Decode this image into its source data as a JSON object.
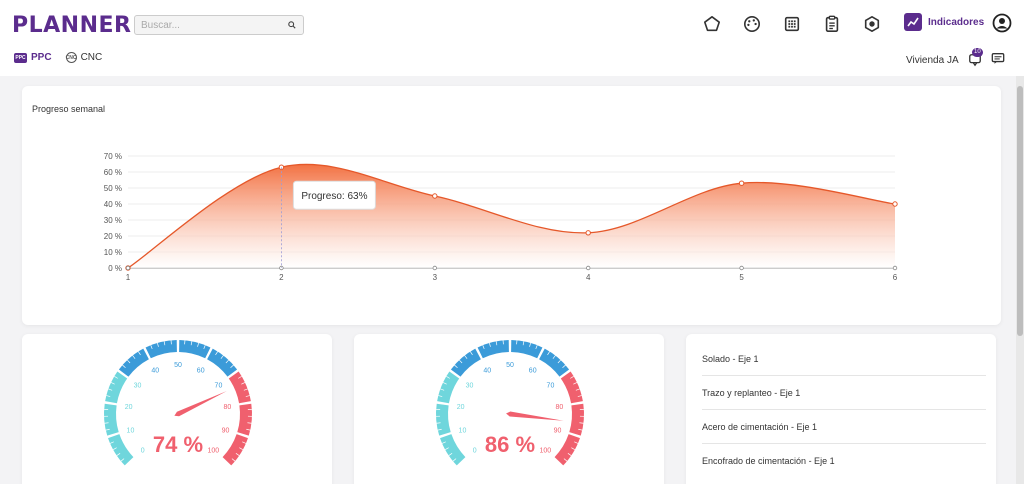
{
  "header": {
    "logo": "PLANNER",
    "search": {
      "placeholder": "Buscar...",
      "value": ""
    },
    "nav_icons": [
      "pentagon-icon",
      "palette-icon",
      "calendar-icon",
      "clipboard-icon",
      "hexagon-icon"
    ],
    "active_nav": {
      "label": "Indicadores",
      "icon": "trend-icon"
    }
  },
  "subnav": {
    "tabs": [
      {
        "label": "PPC",
        "icon_text": "PPC",
        "active": true
      },
      {
        "label": "CNC",
        "icon_text": "CNC",
        "active": false
      }
    ],
    "project": "Vivienda JA",
    "notification_count": "10"
  },
  "chart_data": {
    "type": "area",
    "title": "Progreso semanal",
    "x": [
      1,
      2,
      3,
      4,
      5,
      6
    ],
    "series": [
      {
        "values": [
          0,
          63,
          45,
          22,
          53,
          40
        ]
      }
    ],
    "xticks": [
      "1",
      "2",
      "3",
      "4",
      "5",
      "6"
    ],
    "yticks": [
      "0 %",
      "10 %",
      "20 %",
      "30 %",
      "40 %",
      "50 %",
      "60 %",
      "70 %"
    ],
    "ylim": [
      0,
      70
    ],
    "grid": true,
    "tooltip": {
      "x": 2,
      "text": "Progreso: 63%"
    },
    "colors": {
      "line": "#e5582a",
      "fill_top": "#f26b3a",
      "fill_bottom": "#ffffff"
    }
  },
  "gauges": [
    {
      "value": 74,
      "label": "74 %",
      "ticks": [
        "0",
        "10",
        "20",
        "30",
        "40",
        "50",
        "60",
        "70",
        "80",
        "90",
        "100"
      ]
    },
    {
      "value": 86,
      "label": "86 %",
      "ticks": [
        "0",
        "10",
        "20",
        "30",
        "40",
        "50",
        "60",
        "70",
        "80",
        "90",
        "100"
      ]
    }
  ],
  "gauge_colors": {
    "low": "#6fd6dc",
    "mid": "#3b9bd9",
    "high": "#f0606e"
  },
  "tasks": [
    "Solado - Eje 1",
    "Trazo y replanteo - Eje 1",
    "Acero de cimentación - Eje 1",
    "Encofrado de cimentación - Eje 1"
  ]
}
